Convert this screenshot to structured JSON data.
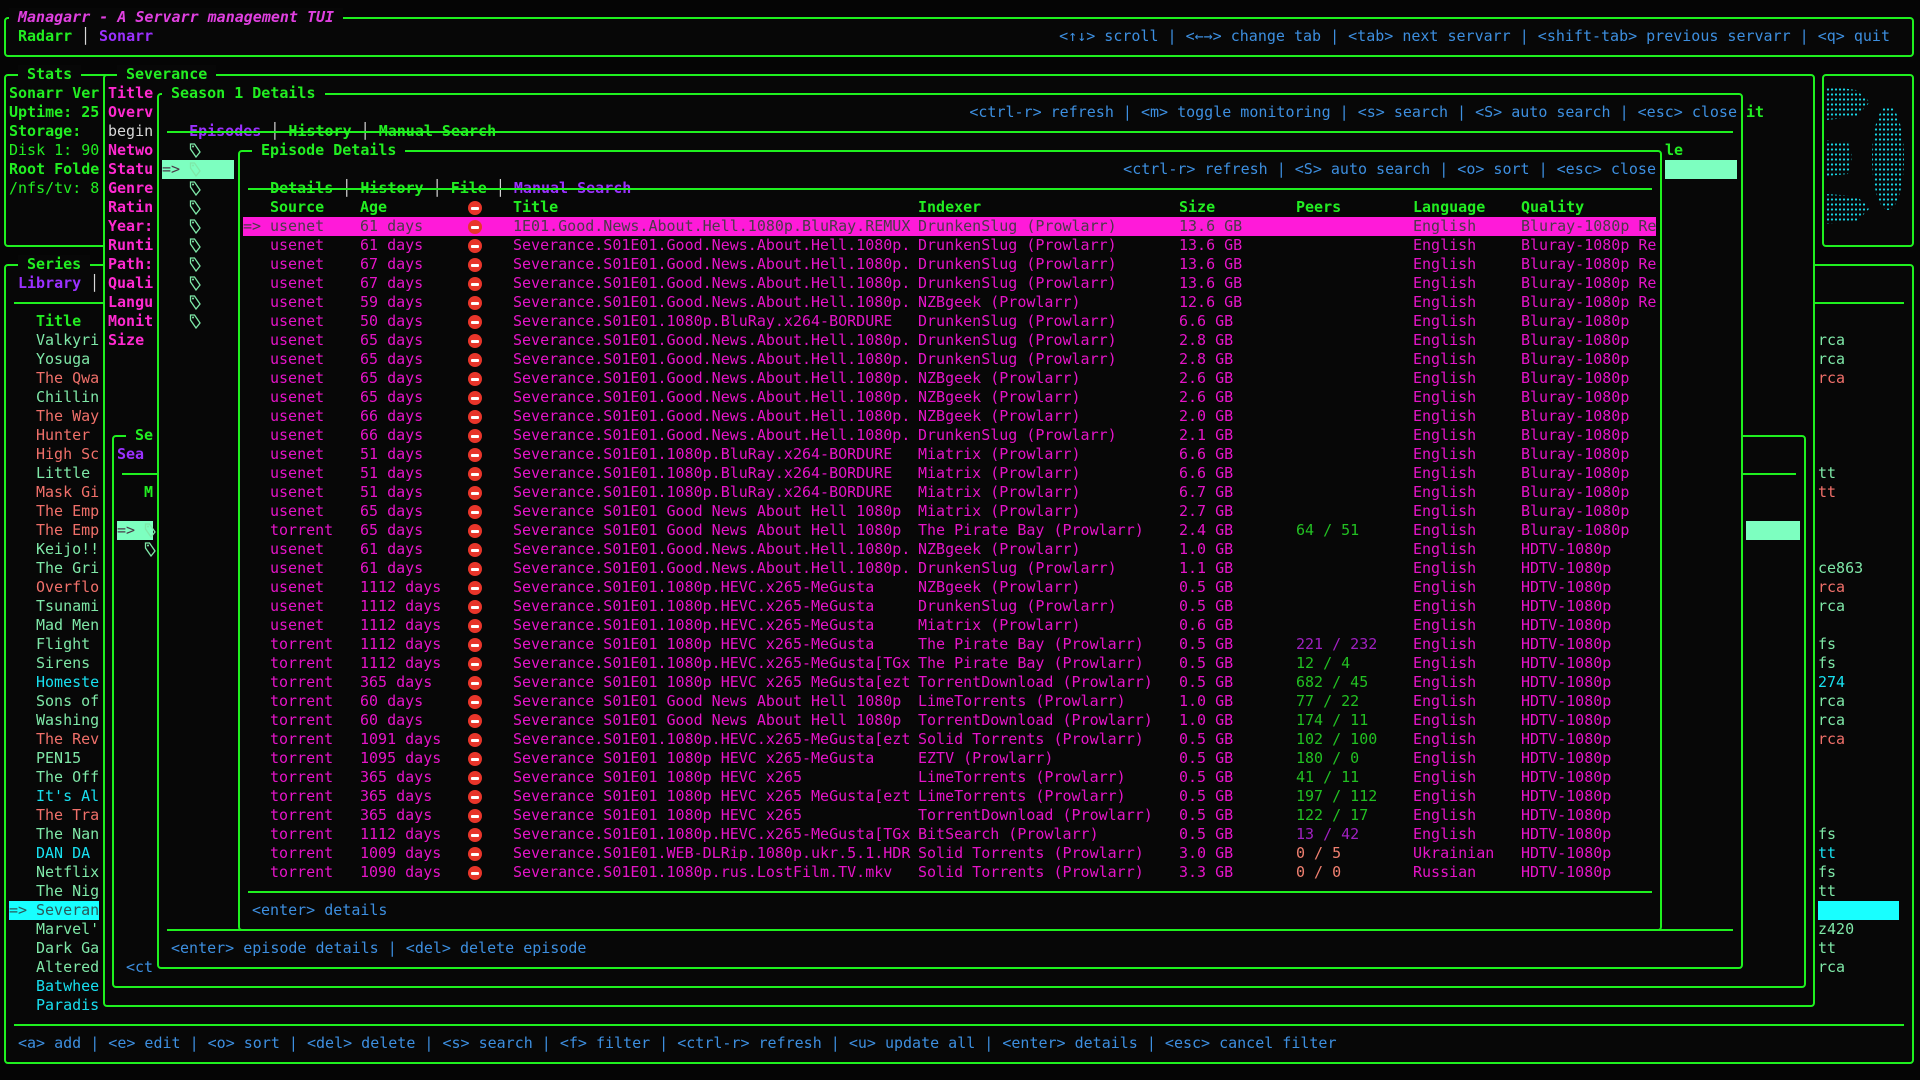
{
  "app": {
    "title": "Managarr - A Servarr management TUI",
    "servarr_tabs": [
      {
        "label": "Radarr",
        "active": false
      },
      {
        "label": "Sonarr",
        "active": true
      }
    ],
    "help": "<↑↓> scroll | <←→> change tab | <tab> next servarr | <shift-tab> previous servarr | <q> quit"
  },
  "stats": {
    "title": "Stats",
    "lines": [
      "Sonarr Ver",
      "Uptime: 25",
      "Storage:",
      "Disk 1: 90",
      "Root Folde",
      "/nfs/tv: 8"
    ],
    "logo_icon": "sonarr-logo-icon"
  },
  "library": {
    "title": "Series",
    "tab": "Library",
    "column": "Title",
    "selected_marker": "=>",
    "selected_index": 30,
    "items": [
      {
        "title": "Valkyri",
        "style": "mint",
        "right": "rca",
        "right_style": "mint"
      },
      {
        "title": "Yosuga",
        "style": "mint",
        "right": "rca",
        "right_style": "mint"
      },
      {
        "title": "The Qwa",
        "style": "salmon",
        "right": "rca",
        "right_style": "salmon"
      },
      {
        "title": "Chillin",
        "style": "mint",
        "right": "",
        "right_style": "mint"
      },
      {
        "title": "The Way",
        "style": "salmon",
        "right": "",
        "right_style": "salmon"
      },
      {
        "title": "Hunter",
        "style": "salmon",
        "right": "",
        "right_style": "salmon"
      },
      {
        "title": "High Sc",
        "style": "salmon",
        "right": "",
        "right_style": "salmon"
      },
      {
        "title": "Little",
        "style": "mint",
        "right": "tt",
        "right_style": "mint"
      },
      {
        "title": "Mask Gi",
        "style": "salmon",
        "right": "tt",
        "right_style": "salmon"
      },
      {
        "title": "The Emp",
        "style": "salmon",
        "right": "",
        "right_style": "salmon"
      },
      {
        "title": "The Emp",
        "style": "salmon",
        "right": "",
        "right_style": "salmon"
      },
      {
        "title": "Keijo!!",
        "style": "mint",
        "right": "",
        "right_style": "mint"
      },
      {
        "title": "The Gri",
        "style": "mint",
        "right": "ce863",
        "right_style": "mint"
      },
      {
        "title": "Overflo",
        "style": "salmon",
        "right": "rca",
        "right_style": "salmon"
      },
      {
        "title": "Tsunami",
        "style": "mint",
        "right": "rca",
        "right_style": "mint"
      },
      {
        "title": "Mad Men",
        "style": "mint",
        "right": "",
        "right_style": "mint"
      },
      {
        "title": "Flight",
        "style": "mint",
        "right": "fs",
        "right_style": "mint"
      },
      {
        "title": "Sirens",
        "style": "mint",
        "right": "fs",
        "right_style": "mint"
      },
      {
        "title": "Homeste",
        "style": "cyan",
        "right": "274",
        "right_style": "cyan"
      },
      {
        "title": "Sons of",
        "style": "mint",
        "right": "rca",
        "right_style": "mint"
      },
      {
        "title": "Washing",
        "style": "mint",
        "right": "rca",
        "right_style": "mint"
      },
      {
        "title": "The Rev",
        "style": "salmon",
        "right": "rca",
        "right_style": "salmon"
      },
      {
        "title": "PEN15",
        "style": "mint",
        "right": "",
        "right_style": "mint"
      },
      {
        "title": "The Off",
        "style": "mint",
        "right": "",
        "right_style": "mint"
      },
      {
        "title": "It's Al",
        "style": "cyan",
        "right": "",
        "right_style": "cyan"
      },
      {
        "title": "The Tra",
        "style": "salmon",
        "right": "",
        "right_style": "salmon"
      },
      {
        "title": "The Nan",
        "style": "mint",
        "right": "fs",
        "right_style": "mint"
      },
      {
        "title": "DAN DA",
        "style": "cyan",
        "right": "tt",
        "right_style": "cyan"
      },
      {
        "title": "Netflix",
        "style": "mint",
        "right": "fs",
        "right_style": "mint"
      },
      {
        "title": "The Nig",
        "style": "mint",
        "right": "tt",
        "right_style": "mint"
      },
      {
        "title": "Severan",
        "style": "mint",
        "right": "",
        "right_style": "mint"
      },
      {
        "title": "Marvel'",
        "style": "mint",
        "right": "z420",
        "right_style": "mint"
      },
      {
        "title": "Dark Ga",
        "style": "mint",
        "right": "tt",
        "right_style": "mint"
      },
      {
        "title": "Altered",
        "style": "mint",
        "right": "rca",
        "right_style": "mint"
      },
      {
        "title": "Batwhee",
        "style": "cyan",
        "right": "",
        "right_style": "cyan"
      },
      {
        "title": "Paradis",
        "style": "cyan",
        "right": "",
        "right_style": "cyan"
      }
    ],
    "help": "<a> add | <e> edit | <o> sort | <del> delete | <s> search | <f> filter | <ctrl-r> refresh | <u> update all | <enter> details | <esc> cancel filter"
  },
  "series_details": {
    "title": "Severance",
    "labels": [
      "Title",
      "Overv",
      "begin",
      "Netwo",
      "Statu",
      "Genre",
      "Ratin",
      "Year:",
      "Runti",
      "Path:",
      "Quali",
      "Langu",
      "Monit",
      "Size"
    ],
    "right_fragment": "it"
  },
  "hidden_panel": {
    "title": "Se",
    "tab": "Sea",
    "column": "M",
    "selected_marker": "=>",
    "footer": "<ct"
  },
  "season": {
    "title": "Season 1 Details",
    "tabs": [
      {
        "label": "Episodes",
        "active": true
      },
      {
        "label": "History",
        "active": false
      },
      {
        "label": "Manual Search",
        "active": false
      }
    ],
    "help": "<ctrl-r> refresh | <m> toggle monitoring | <s> search | <S> auto search | <esc> close",
    "selected_marker": "=>",
    "right_fragment": "le",
    "footer": "<enter> episode details | <del> delete episode"
  },
  "episode": {
    "title": "Episode Details",
    "tabs": [
      {
        "label": "Details",
        "active": false
      },
      {
        "label": "History",
        "active": false
      },
      {
        "label": "File",
        "active": false
      },
      {
        "label": "Manual Search",
        "active": true
      }
    ],
    "help": "<ctrl-r> refresh | <S> auto search | <o> sort | <esc> close",
    "footer": "<enter> details",
    "selected_marker": "=>",
    "selected_index": 0,
    "columns": {
      "source": "Source",
      "age": "Age",
      "title": "Title",
      "indexer": "Indexer",
      "size": "Size",
      "peers": "Peers",
      "language": "Language",
      "quality": "Quality"
    },
    "rows": [
      {
        "source": "usenet",
        "age": "61 days",
        "title": "1E01.Good.News.About.Hell.1080p.BluRay.REMUX",
        "indexer": "DrunkenSlug (Prowlarr)",
        "size": "13.6 GB",
        "peers": "",
        "peers_style": "pgreen",
        "language": "English",
        "quality": "Bluray-1080p Re"
      },
      {
        "source": "usenet",
        "age": "61 days",
        "title": "Severance.S01E01.Good.News.About.Hell.1080p.",
        "indexer": "DrunkenSlug (Prowlarr)",
        "size": "13.6 GB",
        "peers": "",
        "peers_style": "pgreen",
        "language": "English",
        "quality": "Bluray-1080p Re"
      },
      {
        "source": "usenet",
        "age": "67 days",
        "title": "Severance.S01E01.Good.News.About.Hell.1080p.",
        "indexer": "DrunkenSlug (Prowlarr)",
        "size": "13.6 GB",
        "peers": "",
        "peers_style": "pgreen",
        "language": "English",
        "quality": "Bluray-1080p Re"
      },
      {
        "source": "usenet",
        "age": "67 days",
        "title": "Severance.S01E01.Good.News.About.Hell.1080p.",
        "indexer": "DrunkenSlug (Prowlarr)",
        "size": "13.6 GB",
        "peers": "",
        "peers_style": "pgreen",
        "language": "English",
        "quality": "Bluray-1080p Re"
      },
      {
        "source": "usenet",
        "age": "59 days",
        "title": "Severance.S01E01.Good.News.About.Hell.1080p.",
        "indexer": "NZBgeek (Prowlarr)",
        "size": "12.6 GB",
        "peers": "",
        "peers_style": "pgreen",
        "language": "English",
        "quality": "Bluray-1080p Re"
      },
      {
        "source": "usenet",
        "age": "50 days",
        "title": "Severance.S01E01.1080p.BluRay.x264-BORDURE",
        "indexer": "DrunkenSlug (Prowlarr)",
        "size": "6.6 GB",
        "peers": "",
        "peers_style": "pgreen",
        "language": "English",
        "quality": "Bluray-1080p"
      },
      {
        "source": "usenet",
        "age": "65 days",
        "title": "Severance.S01E01.Good.News.About.Hell.1080p.",
        "indexer": "DrunkenSlug (Prowlarr)",
        "size": "2.8 GB",
        "peers": "",
        "peers_style": "pgreen",
        "language": "English",
        "quality": "Bluray-1080p"
      },
      {
        "source": "usenet",
        "age": "65 days",
        "title": "Severance.S01E01.Good.News.About.Hell.1080p.",
        "indexer": "DrunkenSlug (Prowlarr)",
        "size": "2.8 GB",
        "peers": "",
        "peers_style": "pgreen",
        "language": "English",
        "quality": "Bluray-1080p"
      },
      {
        "source": "usenet",
        "age": "65 days",
        "title": "Severance.S01E01.Good.News.About.Hell.1080p.",
        "indexer": "NZBgeek (Prowlarr)",
        "size": "2.6 GB",
        "peers": "",
        "peers_style": "pgreen",
        "language": "English",
        "quality": "Bluray-1080p"
      },
      {
        "source": "usenet",
        "age": "65 days",
        "title": "Severance.S01E01.Good.News.About.Hell.1080p.",
        "indexer": "NZBgeek (Prowlarr)",
        "size": "2.6 GB",
        "peers": "",
        "peers_style": "pgreen",
        "language": "English",
        "quality": "Bluray-1080p"
      },
      {
        "source": "usenet",
        "age": "66 days",
        "title": "Severance.S01E01.Good.News.About.Hell.1080p.",
        "indexer": "NZBgeek (Prowlarr)",
        "size": "2.0 GB",
        "peers": "",
        "peers_style": "pgreen",
        "language": "English",
        "quality": "Bluray-1080p"
      },
      {
        "source": "usenet",
        "age": "66 days",
        "title": "Severance.S01E01.Good.News.About.Hell.1080p.",
        "indexer": "DrunkenSlug (Prowlarr)",
        "size": "2.1 GB",
        "peers": "",
        "peers_style": "pgreen",
        "language": "English",
        "quality": "Bluray-1080p"
      },
      {
        "source": "usenet",
        "age": "51 days",
        "title": "Severance.S01E01.1080p.BluRay.x264-BORDURE",
        "indexer": "Miatrix (Prowlarr)",
        "size": "6.6 GB",
        "peers": "",
        "peers_style": "pgreen",
        "language": "English",
        "quality": "Bluray-1080p"
      },
      {
        "source": "usenet",
        "age": "51 days",
        "title": "Severance.S01E01.1080p.BluRay.x264-BORDURE",
        "indexer": "Miatrix (Prowlarr)",
        "size": "6.6 GB",
        "peers": "",
        "peers_style": "pgreen",
        "language": "English",
        "quality": "Bluray-1080p"
      },
      {
        "source": "usenet",
        "age": "51 days",
        "title": "Severance.S01E01.1080p.BluRay.x264-BORDURE",
        "indexer": "Miatrix (Prowlarr)",
        "size": "6.7 GB",
        "peers": "",
        "peers_style": "pgreen",
        "language": "English",
        "quality": "Bluray-1080p"
      },
      {
        "source": "usenet",
        "age": "65 days",
        "title": "Severance S01E01 Good News About Hell 1080p",
        "indexer": "Miatrix (Prowlarr)",
        "size": "2.7 GB",
        "peers": "",
        "peers_style": "pgreen",
        "language": "English",
        "quality": "Bluray-1080p"
      },
      {
        "source": "torrent",
        "age": "65 days",
        "title": "Severance S01E01 Good News About Hell 1080p",
        "indexer": "The Pirate Bay (Prowlarr)",
        "size": "2.4 GB",
        "peers": "64 / 51",
        "peers_style": "pgreen",
        "language": "English",
        "quality": "Bluray-1080p"
      },
      {
        "source": "usenet",
        "age": "61 days",
        "title": "Severance.S01E01.Good.News.About.Hell.1080p.",
        "indexer": "NZBgeek (Prowlarr)",
        "size": "1.0 GB",
        "peers": "",
        "peers_style": "pgreen",
        "language": "English",
        "quality": "HDTV-1080p"
      },
      {
        "source": "usenet",
        "age": "61 days",
        "title": "Severance.S01E01.Good.News.About.Hell.1080p.",
        "indexer": "DrunkenSlug (Prowlarr)",
        "size": "1.1 GB",
        "peers": "",
        "peers_style": "pgreen",
        "language": "English",
        "quality": "HDTV-1080p"
      },
      {
        "source": "usenet",
        "age": "1112 days",
        "title": "Severance.S01E01.1080p.HEVC.x265-MeGusta",
        "indexer": "NZBgeek (Prowlarr)",
        "size": "0.5 GB",
        "peers": "",
        "peers_style": "pgreen",
        "language": "English",
        "quality": "HDTV-1080p"
      },
      {
        "source": "usenet",
        "age": "1112 days",
        "title": "Severance.S01E01.1080p.HEVC.x265-MeGusta",
        "indexer": "DrunkenSlug (Prowlarr)",
        "size": "0.5 GB",
        "peers": "",
        "peers_style": "pgreen",
        "language": "English",
        "quality": "HDTV-1080p"
      },
      {
        "source": "usenet",
        "age": "1112 days",
        "title": "Severance.S01E01.1080p.HEVC.x265-MeGusta",
        "indexer": "Miatrix (Prowlarr)",
        "size": "0.6 GB",
        "peers": "",
        "peers_style": "pgreen",
        "language": "English",
        "quality": "HDTV-1080p"
      },
      {
        "source": "torrent",
        "age": "1112 days",
        "title": "Severance S01E01 1080p HEVC x265-MeGusta",
        "indexer": "The Pirate Bay (Prowlarr)",
        "size": "0.5 GB",
        "peers": "221 / 232",
        "peers_style": "ppurple",
        "language": "English",
        "quality": "HDTV-1080p"
      },
      {
        "source": "torrent",
        "age": "1112 days",
        "title": "Severance.S01E01.1080p.HEVC.x265-MeGusta[TGx",
        "indexer": "The Pirate Bay (Prowlarr)",
        "size": "0.5 GB",
        "peers": "12 / 4",
        "peers_style": "pgreen",
        "language": "English",
        "quality": "HDTV-1080p"
      },
      {
        "source": "torrent",
        "age": "365 days",
        "title": "Severance S01E01 1080p HEVC x265 MeGusta[ezt",
        "indexer": "TorrentDownload (Prowlarr)",
        "size": "0.5 GB",
        "peers": "682 / 45",
        "peers_style": "pgreen",
        "language": "English",
        "quality": "HDTV-1080p"
      },
      {
        "source": "torrent",
        "age": "60 days",
        "title": "Severance S01E01 Good News About Hell 1080p",
        "indexer": "LimeTorrents (Prowlarr)",
        "size": "1.0 GB",
        "peers": "77 / 22",
        "peers_style": "pgreen",
        "language": "English",
        "quality": "HDTV-1080p"
      },
      {
        "source": "torrent",
        "age": "60 days",
        "title": "Severance S01E01 Good News About Hell 1080p",
        "indexer": "TorrentDownload (Prowlarr)",
        "size": "1.0 GB",
        "peers": "174 / 11",
        "peers_style": "pgreen",
        "language": "English",
        "quality": "HDTV-1080p"
      },
      {
        "source": "torrent",
        "age": "1091 days",
        "title": "Severance.S01E01.1080p.HEVC.x265-MeGusta[ezt",
        "indexer": "Solid Torrents (Prowlarr)",
        "size": "0.5 GB",
        "peers": "102 / 100",
        "peers_style": "pgreen",
        "language": "English",
        "quality": "HDTV-1080p"
      },
      {
        "source": "torrent",
        "age": "1095 days",
        "title": "Severance S01E01 1080p HEVC x265-MeGusta",
        "indexer": "EZTV (Prowlarr)",
        "size": "0.5 GB",
        "peers": "180 / 0",
        "peers_style": "pgreen",
        "language": "English",
        "quality": "HDTV-1080p"
      },
      {
        "source": "torrent",
        "age": "365 days",
        "title": "Severance S01E01 1080p HEVC x265",
        "indexer": "LimeTorrents (Prowlarr)",
        "size": "0.5 GB",
        "peers": "41 / 11",
        "peers_style": "pgreen",
        "language": "English",
        "quality": "HDTV-1080p"
      },
      {
        "source": "torrent",
        "age": "365 days",
        "title": "Severance S01E01 1080p HEVC x265 MeGusta[ezt",
        "indexer": "LimeTorrents (Prowlarr)",
        "size": "0.5 GB",
        "peers": "197 / 112",
        "peers_style": "pgreen",
        "language": "English",
        "quality": "HDTV-1080p"
      },
      {
        "source": "torrent",
        "age": "365 days",
        "title": "Severance S01E01 1080p HEVC x265",
        "indexer": "TorrentDownload (Prowlarr)",
        "size": "0.5 GB",
        "peers": "122 / 17",
        "peers_style": "pgreen",
        "language": "English",
        "quality": "HDTV-1080p"
      },
      {
        "source": "torrent",
        "age": "1112 days",
        "title": "Severance.S01E01.1080p.HEVC.x265-MeGusta[TGx",
        "indexer": "BitSearch (Prowlarr)",
        "size": "0.5 GB",
        "peers": "13 / 42",
        "peers_style": "ppurple",
        "language": "English",
        "quality": "HDTV-1080p"
      },
      {
        "source": "torrent",
        "age": "1009 days",
        "title": "Severance.S01E01.WEB-DLRip.1080p.ukr.5.1.HDR",
        "indexer": "Solid Torrents (Prowlarr)",
        "size": "3.0 GB",
        "peers": "0 / 5",
        "peers_style": "psalmon",
        "language": "Ukrainian",
        "quality": "HDTV-1080p"
      },
      {
        "source": "torrent",
        "age": "1090 days",
        "title": "Severance.S01E01.1080p.rus.LostFilm.TV.mkv",
        "indexer": "Solid Torrents (Prowlarr)",
        "size": "3.3 GB",
        "peers": "0 / 0",
        "peers_style": "psalmon",
        "language": "Russian",
        "quality": "HDTV-1080p"
      }
    ]
  },
  "colors": {
    "border": "#1ff01f",
    "header_text": "#22ee22",
    "active_tab": "#9b30ff",
    "help_text": "#3d8fe0",
    "release_text": "#e614c8",
    "selected_row_bg": "#ff1ad9",
    "selected_list_bg": "#18ffff",
    "selected_mint_bg": "#7dffc0",
    "status_mint": "#7fe8a8",
    "status_salmon": "#f0706a",
    "status_cyan": "#18e0f0",
    "rejected_icon": "#e8352a"
  }
}
